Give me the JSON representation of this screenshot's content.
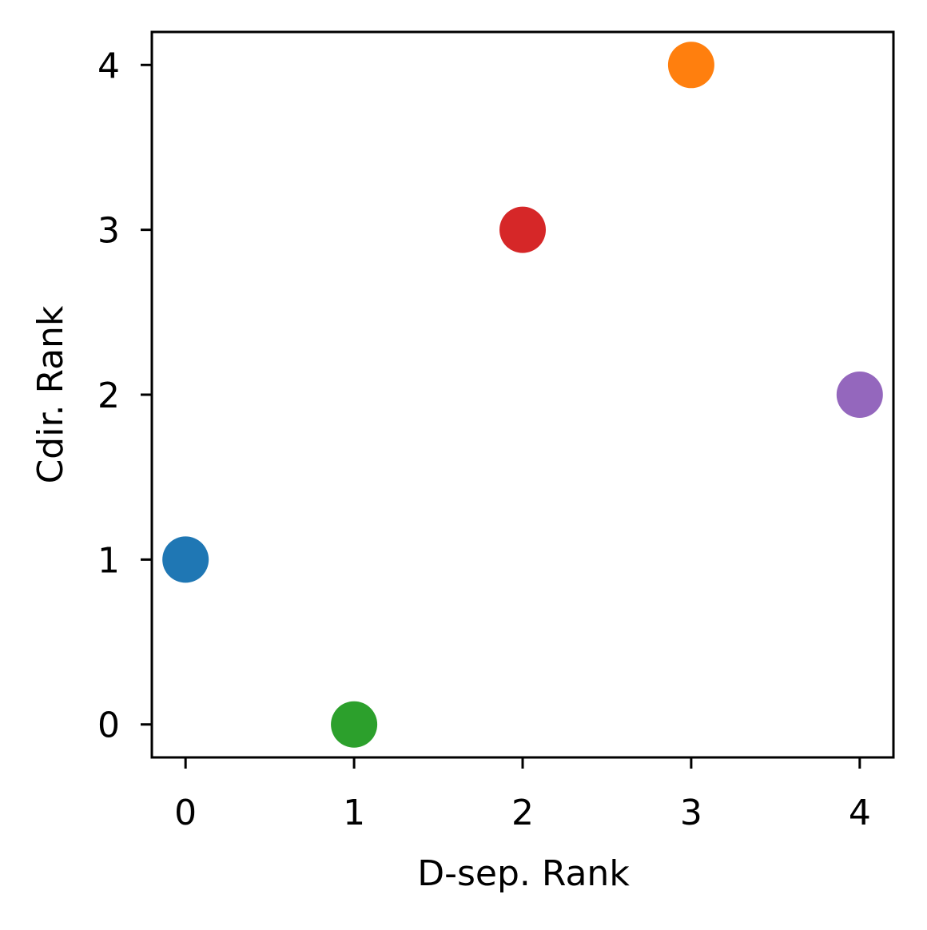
{
  "chart_data": {
    "type": "scatter",
    "title": "",
    "xlabel": "D-sep. Rank",
    "ylabel": "Cdir. Rank",
    "xlim": [
      -0.2,
      4.2
    ],
    "ylim": [
      -0.2,
      4.2
    ],
    "xticks": [
      0,
      1,
      2,
      3,
      4
    ],
    "yticks": [
      0,
      1,
      2,
      3,
      4
    ],
    "grid": false,
    "legend": "none",
    "points": [
      {
        "x": 0,
        "y": 1,
        "color": "#1f77b4"
      },
      {
        "x": 1,
        "y": 0,
        "color": "#2ca02c"
      },
      {
        "x": 2,
        "y": 3,
        "color": "#d62728"
      },
      {
        "x": 3,
        "y": 4,
        "color": "#ff7f0e"
      },
      {
        "x": 4,
        "y": 2,
        "color": "#9467bd"
      }
    ]
  }
}
